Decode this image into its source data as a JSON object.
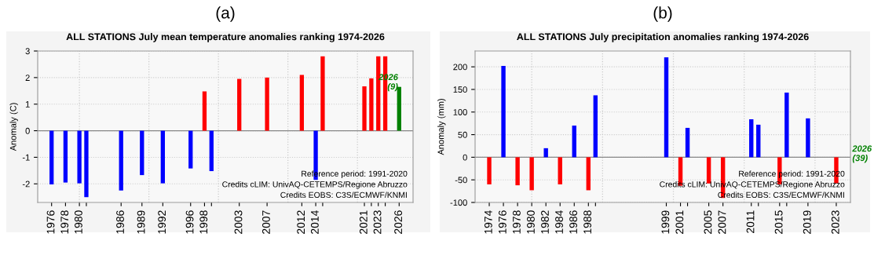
{
  "chart_data": [
    {
      "type": "bar",
      "subtitle": "(a)",
      "title": "ALL STATIONS July mean temperature anomalies ranking 1974-2026",
      "ylabel": "Anomaly (C)",
      "x": [
        1976,
        1978,
        1980,
        1981,
        1986,
        1989,
        1992,
        1996,
        1998,
        1999,
        2003,
        2007,
        2012,
        2014,
        2015,
        2021,
        2022,
        2023,
        2024,
        2026
      ],
      "values": [
        -2.02,
        -1.95,
        -1.98,
        -2.5,
        -2.25,
        -1.67,
        -1.98,
        -1.42,
        1.48,
        -1.52,
        1.95,
        2.0,
        2.1,
        -1.85,
        2.8,
        1.67,
        1.97,
        2.8,
        2.8,
        1.65
      ],
      "colors": [
        "#0000ff",
        "#0000ff",
        "#0000ff",
        "#0000ff",
        "#0000ff",
        "#0000ff",
        "#0000ff",
        "#0000ff",
        "#ff0000",
        "#0000ff",
        "#ff0000",
        "#ff0000",
        "#ff0000",
        "#0000ff",
        "#ff0000",
        "#ff0000",
        "#ff0000",
        "#ff0000",
        "#ff0000",
        "#008000"
      ],
      "xlim": [
        1974,
        2028
      ],
      "ylim": [
        -2.7,
        3
      ],
      "xticks": [
        1976,
        1978,
        1980,
        {
          "value": 1981,
          "label": null
        },
        1986,
        1989,
        1992,
        1996,
        1998,
        {
          "value": 1999,
          "label": null
        },
        2003,
        2007,
        2012,
        2014,
        {
          "value": 2015,
          "label": null
        },
        2021,
        {
          "value": 2022,
          "label": null
        },
        2023,
        {
          "value": 2024,
          "label": null
        },
        2026
      ],
      "yticks": [
        -2,
        -1,
        0,
        1,
        2,
        3
      ],
      "grid": "y",
      "ref_lines": [
        {
          "axis": "y",
          "value": 0,
          "color": "#888888",
          "line_style": "solid"
        },
        {
          "axis": "x",
          "value": 1980,
          "color": "#cccccc",
          "line_style": "dotted"
        },
        {
          "axis": "x",
          "value": 1990,
          "color": "#cccccc",
          "line_style": "dotted"
        },
        {
          "axis": "x",
          "value": 2000,
          "color": "#cccccc",
          "line_style": "dotted"
        },
        {
          "axis": "x",
          "value": 2010,
          "color": "#cccccc",
          "line_style": "dotted"
        },
        {
          "axis": "x",
          "value": 2020,
          "color": "#cccccc",
          "line_style": "dotted"
        }
      ],
      "annotations": [
        {
          "text": "2026\n(9)",
          "x": 2026,
          "y": 1.65
        },
        "Reference period: 1991-2020",
        "Credits cLIM: UnivAQ-CETEMPS/Regione Abruzzo",
        "Credits EOBS: C3S/ECMWF/KNMI"
      ]
    },
    {
      "type": "bar",
      "subtitle": "(b)",
      "title": "ALL STATIONS July precipitation anomalies ranking 1974-2026",
      "ylabel": "Anomaly (mm)",
      "x": [
        1974,
        1976,
        1978,
        1980,
        1982,
        1984,
        1986,
        1988,
        1989,
        1999,
        2001,
        2002,
        2005,
        2007,
        2011,
        2012,
        2015,
        2016,
        2019,
        2023
      ],
      "values": [
        -60,
        202,
        -62,
        -73,
        20,
        -60,
        70,
        -73,
        137,
        221,
        -63,
        65,
        -58,
        -90,
        84,
        72,
        -60,
        143,
        86,
        -58
      ],
      "colors": [
        "#ff0000",
        "#0000ff",
        "#ff0000",
        "#ff0000",
        "#0000ff",
        "#ff0000",
        "#0000ff",
        "#ff0000",
        "#0000ff",
        "#0000ff",
        "#ff0000",
        "#0000ff",
        "#ff0000",
        "#ff0000",
        "#0000ff",
        "#0000ff",
        "#ff0000",
        "#0000ff",
        "#0000ff",
        "#ff0000"
      ],
      "xlim": [
        1972,
        2025
      ],
      "ylim": [
        -100,
        235
      ],
      "xticks": [
        1974,
        1976,
        1978,
        1980,
        1982,
        1984,
        1986,
        1988,
        {
          "value": 1989,
          "label": null
        },
        1999,
        2001,
        {
          "value": 2002,
          "label": null
        },
        2005,
        2007,
        2011,
        {
          "value": 2012,
          "label": null
        },
        2015,
        {
          "value": 2016,
          "label": null
        },
        2019,
        2023
      ],
      "yticks": [
        -100,
        -50,
        0,
        50,
        100,
        150,
        200
      ],
      "grid": "y",
      "ref_lines": [
        {
          "axis": "y",
          "value": 0,
          "color": "#888888",
          "line_style": "solid"
        },
        {
          "axis": "x",
          "value": 1980,
          "color": "#cccccc",
          "line_style": "dotted"
        },
        {
          "axis": "x",
          "value": 1990,
          "color": "#cccccc",
          "line_style": "dotted"
        },
        {
          "axis": "x",
          "value": 2000,
          "color": "#cccccc",
          "line_style": "dotted"
        },
        {
          "axis": "x",
          "value": 2010,
          "color": "#cccccc",
          "line_style": "dotted"
        },
        {
          "axis": "x",
          "value": 2020,
          "color": "#cccccc",
          "line_style": "dotted"
        }
      ],
      "annotations": [
        "2026\n(39)",
        "Reference period: 1991-2020",
        "Credits cLIM: UnivAQ-CETEMPS/Regione Abruzzo",
        "Credits EOBS: C3S/ECMWF/KNMI"
      ]
    }
  ]
}
